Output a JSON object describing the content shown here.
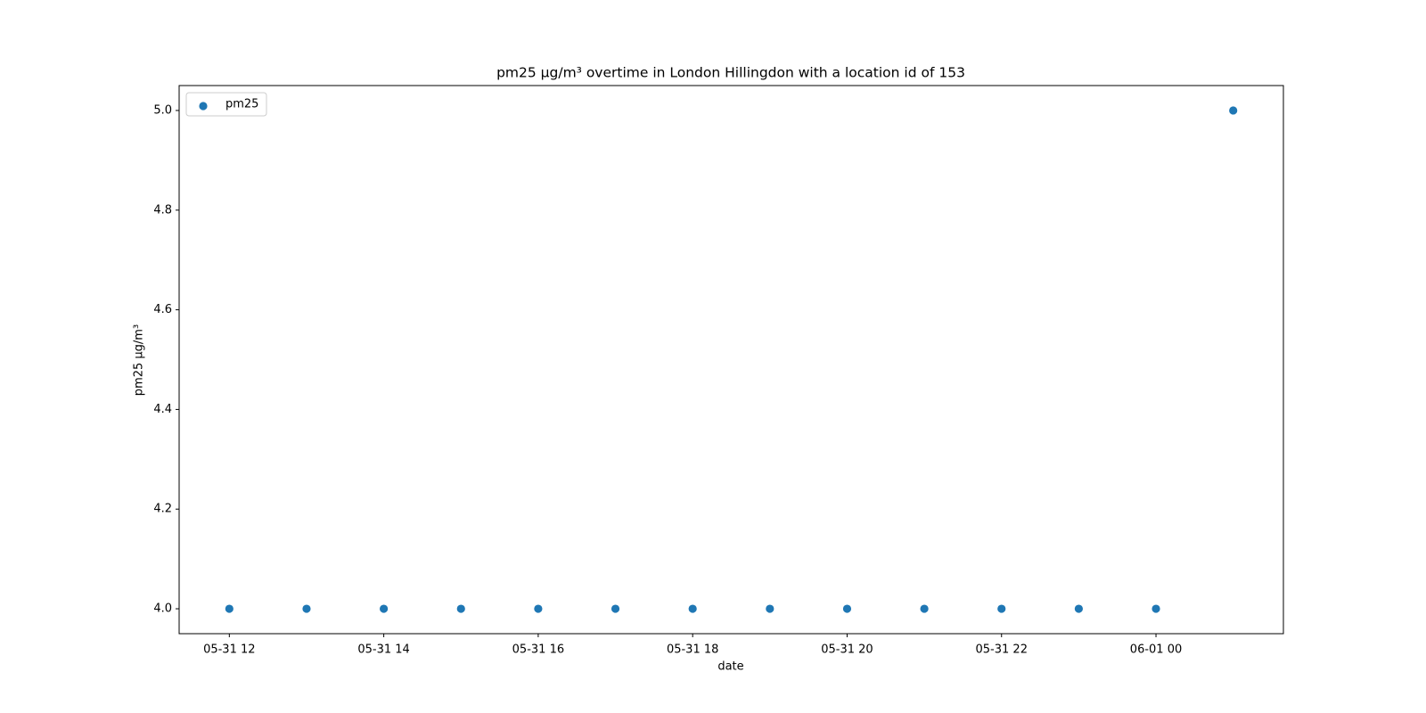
{
  "chart_data": {
    "type": "scatter",
    "title": "pm25 µg/m³ overtime in London Hillingdon with a location id of 153",
    "xlabel": "date",
    "ylabel": "pm25 µg/m³",
    "x": [
      "05-31 12:00",
      "05-31 13:00",
      "05-31 14:00",
      "05-31 15:00",
      "05-31 16:00",
      "05-31 17:00",
      "05-31 18:00",
      "05-31 19:00",
      "05-31 20:00",
      "05-31 21:00",
      "05-31 22:00",
      "05-31 23:00",
      "06-01 00:00",
      "06-01 01:00"
    ],
    "series": [
      {
        "name": "pm25",
        "color": "#1f77b4",
        "values": [
          4,
          4,
          4,
          4,
          4,
          4,
          4,
          4,
          4,
          4,
          4,
          4,
          4,
          5
        ]
      }
    ],
    "xlim": [
      "05-31 11:21",
      "06-01 01:39"
    ],
    "xticks": [
      {
        "value": "05-31 12:00",
        "label": "05-31 12"
      },
      {
        "value": "05-31 14:00",
        "label": "05-31 14"
      },
      {
        "value": "05-31 16:00",
        "label": "05-31 16"
      },
      {
        "value": "05-31 18:00",
        "label": "05-31 18"
      },
      {
        "value": "05-31 20:00",
        "label": "05-31 20"
      },
      {
        "value": "05-31 22:00",
        "label": "05-31 22"
      },
      {
        "value": "06-01 00:00",
        "label": "06-01 00"
      }
    ],
    "ylim": [
      3.95,
      5.05
    ],
    "yticks": [
      {
        "value": 4,
        "label": "4.0"
      },
      {
        "value": 4.2,
        "label": "4.2"
      },
      {
        "value": 4.4,
        "label": "4.4"
      },
      {
        "value": 4.6,
        "label": "4.6"
      },
      {
        "value": 4.8,
        "label": "4.8"
      },
      {
        "value": 5,
        "label": "5.0"
      }
    ],
    "grid": false,
    "legend": "upper left"
  }
}
